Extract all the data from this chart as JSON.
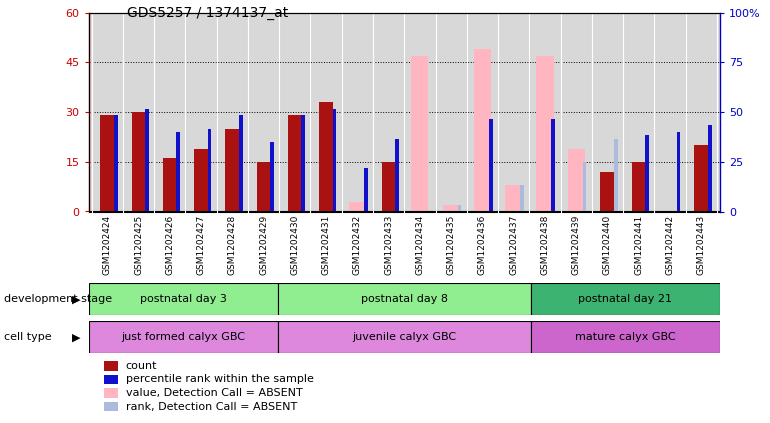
{
  "title": "GDS5257 / 1374137_at",
  "samples": [
    "GSM1202424",
    "GSM1202425",
    "GSM1202426",
    "GSM1202427",
    "GSM1202428",
    "GSM1202429",
    "GSM1202430",
    "GSM1202431",
    "GSM1202432",
    "GSM1202433",
    "GSM1202434",
    "GSM1202435",
    "GSM1202436",
    "GSM1202437",
    "GSM1202438",
    "GSM1202439",
    "GSM1202440",
    "GSM1202441",
    "GSM1202442",
    "GSM1202443"
  ],
  "count_red": [
    29,
    30,
    16,
    19,
    25,
    15,
    29,
    33,
    0,
    15,
    0,
    0,
    0,
    0,
    0,
    0,
    12,
    15,
    0,
    20
  ],
  "rank_blue": [
    29,
    31,
    24,
    25,
    29,
    21,
    29,
    31,
    13,
    22,
    0,
    0,
    28,
    0,
    28,
    0,
    0,
    23,
    24,
    26
  ],
  "absent_value_pink": [
    0,
    0,
    0,
    0,
    0,
    0,
    0,
    0,
    3,
    0,
    47,
    2,
    49,
    8,
    47,
    19,
    0,
    0,
    0,
    0
  ],
  "absent_rank_lightblue": [
    0,
    0,
    0,
    0,
    0,
    0,
    0,
    0,
    0,
    0,
    0,
    2,
    0,
    8,
    0,
    15,
    22,
    0,
    0,
    0
  ],
  "ylim_left": [
    0,
    60
  ],
  "ylim_right": [
    0,
    100
  ],
  "yticks_left": [
    0,
    15,
    30,
    45,
    60
  ],
  "yticks_right": [
    0,
    25,
    50,
    75,
    100
  ],
  "ytick_labels_left": [
    "0",
    "15",
    "30",
    "45",
    "60"
  ],
  "ytick_labels_right": [
    "0",
    "25",
    "50",
    "75",
    "100%"
  ],
  "group_ranges": [
    [
      0,
      6,
      "postnatal day 3"
    ],
    [
      6,
      14,
      "postnatal day 8"
    ],
    [
      14,
      20,
      "postnatal day 21"
    ]
  ],
  "group_color": "#90EE90",
  "group_color_last": "#3CB371",
  "cell_ranges": [
    [
      0,
      6,
      "just formed calyx GBC"
    ],
    [
      6,
      14,
      "juvenile calyx GBC"
    ],
    [
      14,
      20,
      "mature calyx GBC"
    ]
  ],
  "cell_color": "#DD88DD",
  "cell_color_last": "#CC66CC",
  "dev_stage_label": "development stage",
  "cell_type_label": "cell type",
  "legend_labels": [
    "count",
    "percentile rank within the sample",
    "value, Detection Call = ABSENT",
    "rank, Detection Call = ABSENT"
  ],
  "bar_color_red": "#AA1111",
  "bar_color_blue": "#1111CC",
  "bar_color_pink": "#FFB6C1",
  "bar_color_lightblue": "#AABBDD",
  "bg_color": "#D8D8D8",
  "axis_left_color": "#CC0000",
  "axis_right_color": "#0000CC"
}
